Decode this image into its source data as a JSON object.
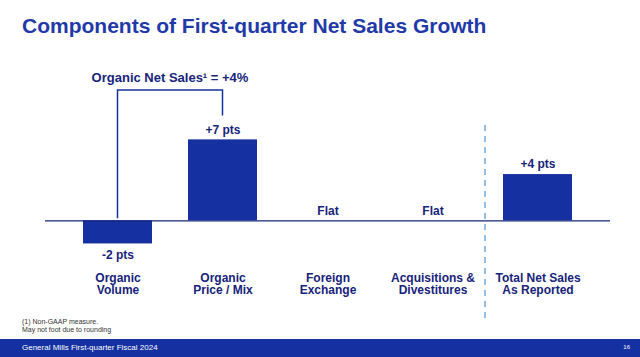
{
  "chart_data": {
    "type": "bar",
    "title": "Components of First-quarter Net Sales Growth",
    "categories": [
      "Organic\nVolume",
      "Organic\nPrice / Mix",
      "Foreign\nExchange",
      "Acquisitions &\nDivestitures",
      "Total Net Sales\nAs Reported"
    ],
    "values": [
      -2,
      7,
      0,
      0,
      4
    ],
    "value_labels": [
      "-2 pts",
      "+7 pts",
      "Flat",
      "Flat",
      "+4 pts"
    ],
    "data_labels": true,
    "color": "#1530a0",
    "ylim": [
      -3,
      13
    ],
    "yticks": [
      0
    ],
    "grid": false,
    "tick_labels": "x",
    "annotation": "Organic Net Sales¹ = +4%",
    "footnotes": [
      "(1)  Non-GAAP measure.",
      "May not foot due to rounding"
    ],
    "footer": "General Mills First-quarter Fiscal 2024",
    "page_number": "16"
  }
}
